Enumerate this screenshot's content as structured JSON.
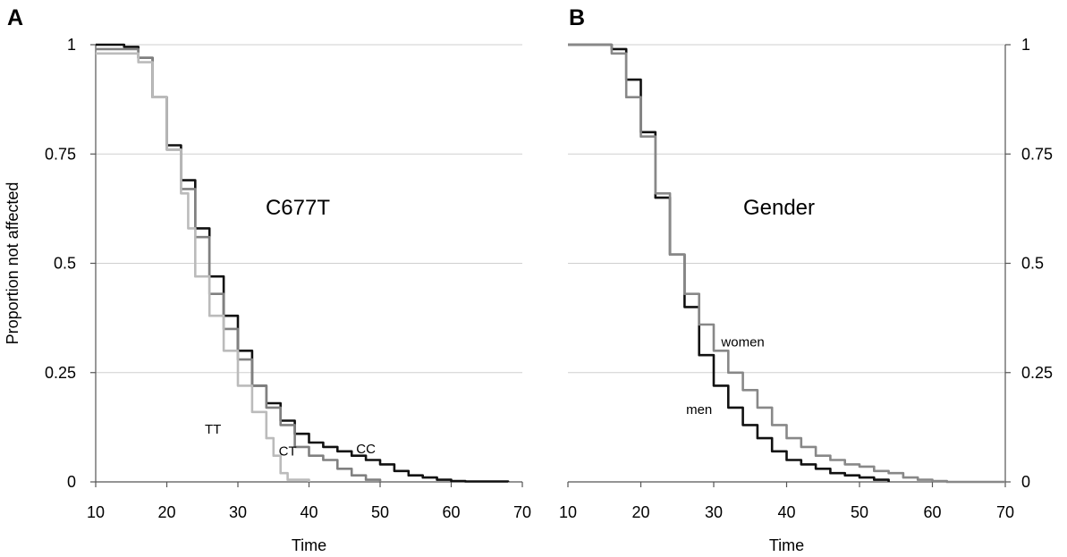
{
  "chart_data": [
    {
      "type": "line",
      "panel_label": "A",
      "title": "C677T",
      "xlabel": "Time",
      "ylabel": "Proportion not affected",
      "xlim": [
        10,
        70
      ],
      "ylim": [
        0,
        1
      ],
      "x_ticks": [
        "10",
        "20",
        "30",
        "40",
        "50",
        "60",
        "70"
      ],
      "y_ticks": [
        "0",
        "0.25",
        "0.5",
        "0.75",
        "1"
      ],
      "y_axis_side": "left",
      "grid": "horizontal",
      "series": [
        {
          "name": "CC",
          "color": "#111111",
          "points": [
            [
              10,
              1.0
            ],
            [
              14,
              0.995
            ],
            [
              16,
              0.97
            ],
            [
              18,
              0.88
            ],
            [
              20,
              0.77
            ],
            [
              22,
              0.69
            ],
            [
              24,
              0.58
            ],
            [
              26,
              0.47
            ],
            [
              28,
              0.38
            ],
            [
              30,
              0.3
            ],
            [
              32,
              0.22
            ],
            [
              34,
              0.18
            ],
            [
              36,
              0.14
            ],
            [
              38,
              0.11
            ],
            [
              40,
              0.09
            ],
            [
              42,
              0.08
            ],
            [
              44,
              0.07
            ],
            [
              46,
              0.06
            ],
            [
              48,
              0.05
            ],
            [
              50,
              0.04
            ],
            [
              52,
              0.025
            ],
            [
              54,
              0.015
            ],
            [
              56,
              0.01
            ],
            [
              58,
              0.005
            ],
            [
              60,
              0.002
            ],
            [
              62,
              0.001
            ],
            [
              68,
              0.0
            ]
          ]
        },
        {
          "name": "CT",
          "color": "#808080",
          "points": [
            [
              10,
              0.99
            ],
            [
              14,
              0.99
            ],
            [
              16,
              0.97
            ],
            [
              18,
              0.88
            ],
            [
              20,
              0.76
            ],
            [
              22,
              0.67
            ],
            [
              24,
              0.56
            ],
            [
              26,
              0.43
            ],
            [
              28,
              0.35
            ],
            [
              30,
              0.28
            ],
            [
              32,
              0.22
            ],
            [
              34,
              0.17
            ],
            [
              36,
              0.13
            ],
            [
              38,
              0.08
            ],
            [
              40,
              0.06
            ],
            [
              42,
              0.05
            ],
            [
              44,
              0.03
            ],
            [
              46,
              0.015
            ],
            [
              48,
              0.005
            ],
            [
              50,
              0.0
            ]
          ]
        },
        {
          "name": "TT",
          "color": "#bbbbbb",
          "points": [
            [
              10,
              0.98
            ],
            [
              14,
              0.98
            ],
            [
              16,
              0.96
            ],
            [
              18,
              0.88
            ],
            [
              20,
              0.76
            ],
            [
              22,
              0.66
            ],
            [
              23,
              0.58
            ],
            [
              24,
              0.47
            ],
            [
              26,
              0.38
            ],
            [
              28,
              0.3
            ],
            [
              30,
              0.22
            ],
            [
              32,
              0.16
            ],
            [
              34,
              0.1
            ],
            [
              35,
              0.06
            ],
            [
              36,
              0.02
            ],
            [
              37,
              0.005
            ],
            [
              40,
              0.0
            ]
          ]
        }
      ],
      "labels": [
        {
          "text": "TT",
          "x": 26.5,
          "y": 0.11
        },
        {
          "text": "CT",
          "x": 37.0,
          "y": 0.06
        },
        {
          "text": "CC",
          "x": 48.0,
          "y": 0.065
        }
      ]
    },
    {
      "type": "line",
      "panel_label": "B",
      "title": "Gender",
      "xlabel": "Time",
      "ylabel": "",
      "xlim": [
        10,
        70
      ],
      "ylim": [
        0,
        1
      ],
      "x_ticks": [
        "10",
        "20",
        "30",
        "40",
        "50",
        "60",
        "70"
      ],
      "y_ticks": [
        "0",
        "0.25",
        "0.5",
        "0.75",
        "1"
      ],
      "y_axis_side": "right",
      "grid": "horizontal",
      "series": [
        {
          "name": "men",
          "color": "#111111",
          "points": [
            [
              10,
              1.0
            ],
            [
              15,
              1.0
            ],
            [
              16,
              0.99
            ],
            [
              18,
              0.92
            ],
            [
              20,
              0.8
            ],
            [
              22,
              0.65
            ],
            [
              24,
              0.52
            ],
            [
              26,
              0.4
            ],
            [
              28,
              0.29
            ],
            [
              30,
              0.22
            ],
            [
              32,
              0.17
            ],
            [
              34,
              0.13
            ],
            [
              36,
              0.1
            ],
            [
              38,
              0.07
            ],
            [
              40,
              0.05
            ],
            [
              42,
              0.04
            ],
            [
              44,
              0.03
            ],
            [
              46,
              0.02
            ],
            [
              48,
              0.015
            ],
            [
              50,
              0.01
            ],
            [
              52,
              0.005
            ],
            [
              54,
              0.0
            ]
          ]
        },
        {
          "name": "women",
          "color": "#888888",
          "points": [
            [
              10,
              1.0
            ],
            [
              14,
              1.0
            ],
            [
              16,
              0.98
            ],
            [
              18,
              0.88
            ],
            [
              20,
              0.79
            ],
            [
              22,
              0.66
            ],
            [
              24,
              0.52
            ],
            [
              26,
              0.43
            ],
            [
              28,
              0.36
            ],
            [
              30,
              0.3
            ],
            [
              32,
              0.25
            ],
            [
              34,
              0.21
            ],
            [
              36,
              0.17
            ],
            [
              38,
              0.13
            ],
            [
              40,
              0.1
            ],
            [
              42,
              0.08
            ],
            [
              44,
              0.06
            ],
            [
              46,
              0.05
            ],
            [
              48,
              0.04
            ],
            [
              50,
              0.035
            ],
            [
              52,
              0.025
            ],
            [
              54,
              0.02
            ],
            [
              56,
              0.01
            ],
            [
              58,
              0.005
            ],
            [
              60,
              0.002
            ],
            [
              62,
              0.0
            ],
            [
              70,
              0.0
            ]
          ]
        }
      ],
      "labels": [
        {
          "text": "women",
          "x": 34.0,
          "y": 0.31
        },
        {
          "text": "men",
          "x": 28.0,
          "y": 0.155
        }
      ]
    }
  ]
}
